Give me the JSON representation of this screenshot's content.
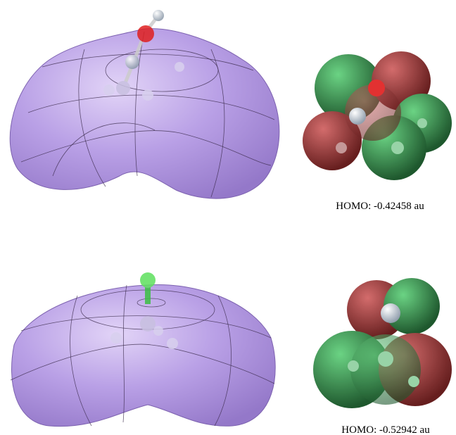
{
  "panels": [
    {
      "label": "HOMO: -0.42458 au"
    },
    {
      "label": "HOMO: -0.52942 au"
    }
  ]
}
